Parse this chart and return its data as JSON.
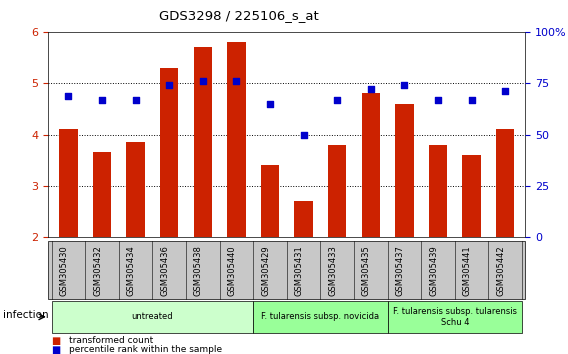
{
  "title": "GDS3298 / 225106_s_at",
  "categories": [
    "GSM305430",
    "GSM305432",
    "GSM305434",
    "GSM305436",
    "GSM305438",
    "GSM305440",
    "GSM305429",
    "GSM305431",
    "GSM305433",
    "GSM305435",
    "GSM305437",
    "GSM305439",
    "GSM305441",
    "GSM305442"
  ],
  "bar_values": [
    4.1,
    3.65,
    3.85,
    5.3,
    5.7,
    5.8,
    3.4,
    2.7,
    3.8,
    4.8,
    4.6,
    3.8,
    3.6,
    4.1
  ],
  "dot_values": [
    69,
    67,
    67,
    74,
    76,
    76,
    65,
    50,
    67,
    72,
    74,
    67,
    67,
    71
  ],
  "bar_color": "#cc2200",
  "dot_color": "#0000cc",
  "ylim_left": [
    2,
    6
  ],
  "ylim_right": [
    0,
    100
  ],
  "yticks_left": [
    2,
    3,
    4,
    5,
    6
  ],
  "yticks_right": [
    0,
    25,
    50,
    75,
    100
  ],
  "ytick_labels_right": [
    "0",
    "25",
    "50",
    "75",
    "100%"
  ],
  "hgrid_at": [
    3,
    4,
    5
  ],
  "groups": [
    {
      "label": "untreated",
      "start": 0,
      "end": 5,
      "color": "#ccffcc"
    },
    {
      "label": "F. tularensis subsp. novicida",
      "start": 6,
      "end": 9,
      "color": "#99ff99"
    },
    {
      "label": "F. tularensis subsp. tularensis\nSchu 4",
      "start": 10,
      "end": 13,
      "color": "#99ff99"
    }
  ],
  "group_row_label": "infection",
  "legend_items": [
    {
      "label": "transformed count",
      "color": "#cc2200"
    },
    {
      "label": "percentile rank within the sample",
      "color": "#0000cc"
    }
  ],
  "background_color": "#ffffff",
  "bar_width": 0.55,
  "tick_bg_color": "#c8c8c8"
}
